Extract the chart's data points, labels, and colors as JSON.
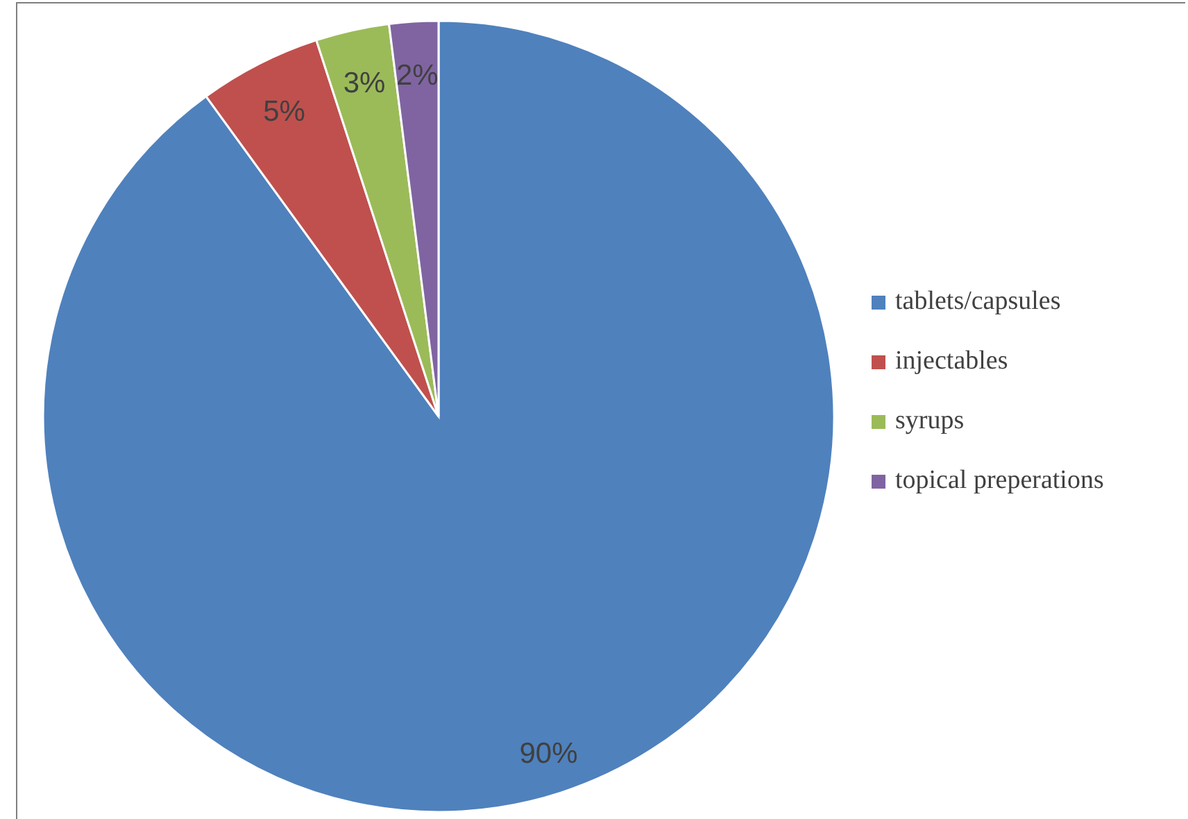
{
  "chart_data": {
    "type": "pie",
    "categories": [
      "tablets/capsules",
      "injectables",
      "syrups",
      "topical preperations"
    ],
    "values": [
      90,
      5,
      3,
      2
    ],
    "colors": [
      "#4f81bd",
      "#c0504d",
      "#9bbb59",
      "#8064a2"
    ],
    "value_labels": [
      "90%",
      "5%",
      "3%",
      "2%"
    ],
    "legend": "right"
  }
}
